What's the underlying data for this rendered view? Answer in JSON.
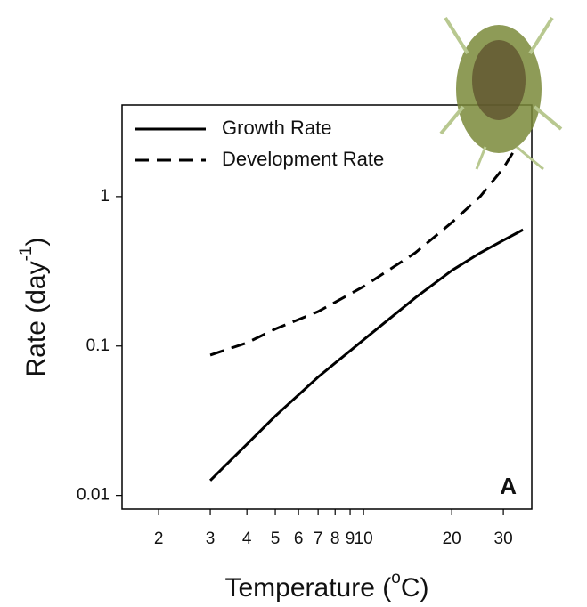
{
  "chart_data": {
    "type": "line",
    "log_x": true,
    "log_y": true,
    "x_label": {
      "text": "Temperature (",
      "superscript": "o",
      "end": "C)"
    },
    "y_label": {
      "text": "Rate (day",
      "superscript": "-1",
      "end": ")"
    },
    "annotation": "A",
    "xlim": [
      1.5,
      37.5
    ],
    "xticks": [
      2,
      3,
      4,
      5,
      6,
      7,
      8,
      9,
      10,
      20,
      30
    ],
    "ylim": [
      0.0081,
      4.1
    ],
    "yticks": [
      0.01,
      0.1,
      1
    ],
    "legend": "upper left",
    "series": [
      {
        "name": "Growth Rate",
        "color": "#000000",
        "dash": "solid",
        "x": [
          3,
          4,
          5,
          7,
          10,
          15,
          20,
          25,
          30,
          35
        ],
        "values": [
          0.0126,
          0.022,
          0.034,
          0.062,
          0.11,
          0.21,
          0.32,
          0.42,
          0.51,
          0.6
        ]
      },
      {
        "name": "Development Rate",
        "color": "#000000",
        "dash": "dashed",
        "x": [
          3,
          4,
          5,
          7,
          10,
          15,
          20,
          25,
          30,
          33
        ],
        "values": [
          0.087,
          0.105,
          0.13,
          0.17,
          0.25,
          0.42,
          0.67,
          1.0,
          1.55,
          2.1
        ]
      }
    ]
  }
}
